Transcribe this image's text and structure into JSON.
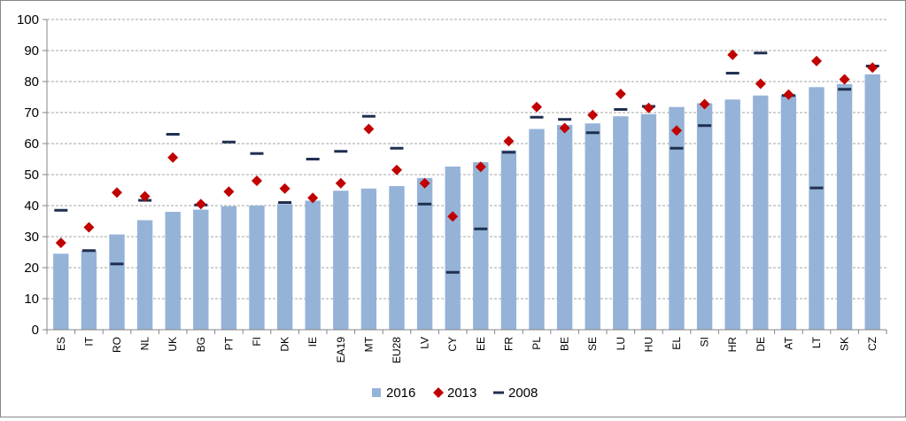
{
  "chart_data": {
    "type": "bar",
    "title": "",
    "xlabel": "",
    "ylabel": "",
    "ylim": [
      0,
      100
    ],
    "yticks": [
      0,
      10,
      20,
      30,
      40,
      50,
      60,
      70,
      80,
      90,
      100
    ],
    "grid": "horizontal dashed",
    "legend_position": "bottom-center",
    "categories": [
      "ES",
      "IT",
      "RO",
      "NL",
      "UK",
      "BG",
      "PT",
      "FI",
      "DK",
      "IE",
      "EA19",
      "MT",
      "EU28",
      "LV",
      "CY",
      "EE",
      "FR",
      "PL",
      "BE",
      "SE",
      "LU",
      "HU",
      "EL",
      "SI",
      "HR",
      "DE",
      "AT",
      "LT",
      "SK",
      "CZ"
    ],
    "series": [
      {
        "name": "2016",
        "kind": "bar",
        "color": "#95b3d7",
        "values": [
          24.5,
          25.5,
          30.7,
          35.3,
          38.0,
          38.7,
          39.8,
          40.0,
          40.5,
          41.6,
          44.8,
          45.5,
          46.3,
          48.9,
          52.6,
          54.0,
          57.8,
          64.7,
          66.0,
          66.5,
          68.8,
          69.5,
          71.8,
          73.0,
          74.2,
          75.5,
          75.7,
          78.2,
          79.2,
          82.3
        ]
      },
      {
        "name": "2013",
        "kind": "marker-diamond",
        "color": "#c00000",
        "values": [
          28.0,
          33.0,
          44.2,
          43.0,
          55.5,
          40.5,
          44.5,
          48.0,
          45.5,
          42.5,
          47.2,
          64.7,
          51.5,
          47.2,
          36.5,
          52.5,
          60.8,
          71.8,
          65.0,
          69.2,
          76.0,
          71.5,
          64.2,
          72.7,
          88.6,
          79.3,
          75.8,
          86.6,
          80.7,
          84.5
        ]
      },
      {
        "name": "2008",
        "kind": "marker-dash",
        "color": "#1f2f4f",
        "values": [
          38.5,
          25.5,
          21.2,
          41.7,
          63.0,
          40.2,
          60.5,
          56.8,
          41.0,
          55.0,
          57.5,
          68.8,
          58.5,
          40.5,
          18.5,
          32.5,
          57.2,
          68.5,
          67.8,
          63.5,
          71.0,
          72.0,
          58.5,
          65.8,
          82.7,
          89.2,
          75.5,
          45.7,
          77.5,
          85.0
        ]
      }
    ]
  }
}
